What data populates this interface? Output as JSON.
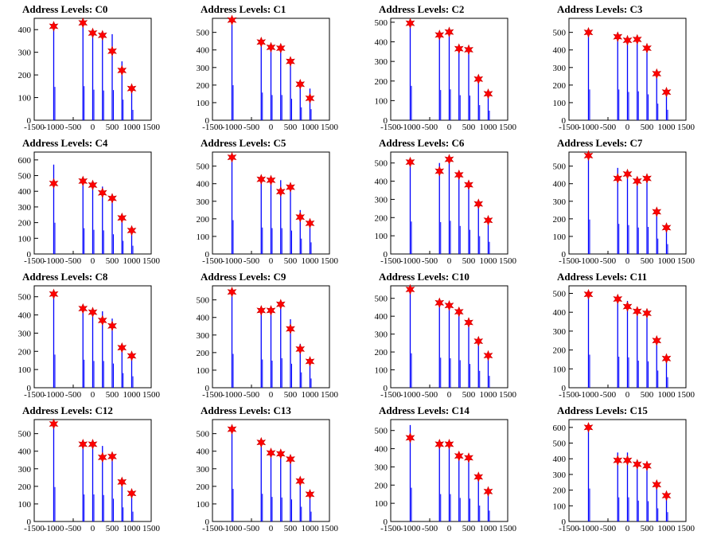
{
  "chart_data": [
    {
      "title": "Address Levels: C0",
      "type": "bar",
      "xlim": [
        -1500,
        1500
      ],
      "ylim": [
        0,
        450
      ],
      "yticks": [
        0,
        100,
        200,
        300,
        400
      ],
      "xticks": [
        -1500,
        -1000,
        -500,
        0,
        500,
        1000,
        1500
      ],
      "x": [
        -1000,
        -500,
        -250,
        0,
        250,
        500,
        750,
        1000
      ],
      "values": [
        420,
        0,
        430,
        385,
        375,
        380,
        260,
        130
      ],
      "markers": [
        [
          -1000,
          415
        ],
        [
          -250,
          430
        ],
        [
          0,
          385
        ],
        [
          250,
          375
        ],
        [
          500,
          305
        ],
        [
          750,
          220
        ],
        [
          1000,
          140
        ]
      ]
    },
    {
      "title": "Address Levels: C1",
      "type": "bar",
      "xlim": [
        -1500,
        1500
      ],
      "ylim": [
        0,
        580
      ],
      "yticks": [
        0,
        100,
        200,
        300,
        400,
        500
      ],
      "xticks": [
        -1500,
        -1000,
        -500,
        0,
        500,
        1000,
        1500
      ],
      "x": [
        -1000,
        -250,
        0,
        250,
        500,
        750,
        1000
      ],
      "values": [
        570,
        450,
        410,
        410,
        350,
        210,
        180
      ],
      "markers": [
        [
          -1000,
          570
        ],
        [
          -250,
          445
        ],
        [
          0,
          415
        ],
        [
          250,
          410
        ],
        [
          500,
          335
        ],
        [
          750,
          205
        ],
        [
          1000,
          125
        ]
      ]
    },
    {
      "title": "Address Levels: C2",
      "type": "bar",
      "xlim": [
        -1500,
        1500
      ],
      "ylim": [
        0,
        520
      ],
      "yticks": [
        0,
        100,
        200,
        300,
        400,
        500
      ],
      "xticks": [
        -1500,
        -1000,
        -500,
        0,
        500,
        1000,
        1500
      ],
      "x": [
        -1000,
        -250,
        0,
        250,
        500,
        750,
        1000
      ],
      "values": [
        500,
        440,
        450,
        365,
        360,
        220,
        140
      ],
      "markers": [
        [
          -1000,
          495
        ],
        [
          -250,
          435
        ],
        [
          0,
          450
        ],
        [
          250,
          365
        ],
        [
          500,
          360
        ],
        [
          750,
          210
        ],
        [
          1000,
          135
        ]
      ]
    },
    {
      "title": "Address Levels: C3",
      "type": "bar",
      "xlim": [
        -1500,
        1500
      ],
      "ylim": [
        0,
        580
      ],
      "yticks": [
        0,
        100,
        200,
        300,
        400,
        500
      ],
      "xticks": [
        -1500,
        -1000,
        -500,
        0,
        500,
        1000,
        1500
      ],
      "x": [
        -1000,
        -250,
        0,
        250,
        500,
        750,
        1000
      ],
      "values": [
        500,
        500,
        460,
        470,
        420,
        270,
        170
      ],
      "markers": [
        [
          -1000,
          500
        ],
        [
          -250,
          475
        ],
        [
          0,
          455
        ],
        [
          250,
          460
        ],
        [
          500,
          410
        ],
        [
          750,
          265
        ],
        [
          1000,
          160
        ]
      ]
    },
    {
      "title": "Address Levels: C4",
      "type": "bar",
      "xlim": [
        -1500,
        1500
      ],
      "ylim": [
        0,
        650
      ],
      "yticks": [
        0,
        100,
        200,
        300,
        400,
        500,
        600
      ],
      "xticks": [
        -1500,
        -1000,
        -500,
        0,
        500,
        1000,
        1500
      ],
      "x": [
        -1000,
        -250,
        0,
        250,
        500,
        750,
        1000
      ],
      "values": [
        570,
        470,
        440,
        430,
        360,
        240,
        150
      ],
      "markers": [
        [
          -1000,
          450
        ],
        [
          -250,
          465
        ],
        [
          0,
          440
        ],
        [
          250,
          390
        ],
        [
          500,
          355
        ],
        [
          750,
          230
        ],
        [
          1000,
          150
        ]
      ]
    },
    {
      "title": "Address Levels: C5",
      "type": "bar",
      "xlim": [
        -1500,
        1500
      ],
      "ylim": [
        0,
        580
      ],
      "yticks": [
        0,
        100,
        200,
        300,
        400,
        500
      ],
      "xticks": [
        -1500,
        -1000,
        -500,
        0,
        500,
        1000,
        1500
      ],
      "x": [
        -1000,
        -250,
        0,
        250,
        500,
        750,
        1000
      ],
      "values": [
        550,
        430,
        420,
        420,
        380,
        250,
        190
      ],
      "markers": [
        [
          -1000,
          550
        ],
        [
          -250,
          425
        ],
        [
          0,
          420
        ],
        [
          250,
          355
        ],
        [
          500,
          380
        ],
        [
          750,
          210
        ],
        [
          1000,
          175
        ]
      ]
    },
    {
      "title": "Address Levels: C6",
      "type": "bar",
      "xlim": [
        -1500,
        1500
      ],
      "ylim": [
        0,
        560
      ],
      "yticks": [
        0,
        100,
        200,
        300,
        400,
        500
      ],
      "xticks": [
        -1500,
        -1000,
        -500,
        0,
        500,
        1000,
        1500
      ],
      "x": [
        -1000,
        -250,
        0,
        250,
        500,
        750,
        1000
      ],
      "values": [
        510,
        500,
        520,
        440,
        380,
        280,
        190
      ],
      "markers": [
        [
          -1000,
          505
        ],
        [
          -250,
          455
        ],
        [
          0,
          520
        ],
        [
          250,
          435
        ],
        [
          500,
          380
        ],
        [
          750,
          275
        ],
        [
          1000,
          185
        ]
      ]
    },
    {
      "title": "Address Levels: C7",
      "type": "bar",
      "xlim": [
        -1500,
        1500
      ],
      "ylim": [
        0,
        580
      ],
      "yticks": [
        0,
        100,
        200,
        300,
        400,
        500
      ],
      "xticks": [
        -1500,
        -1000,
        -500,
        0,
        500,
        1000,
        1500
      ],
      "x": [
        -1000,
        -250,
        0,
        250,
        500,
        750,
        1000
      ],
      "values": [
        560,
        490,
        470,
        430,
        440,
        250,
        160
      ],
      "markers": [
        [
          -1000,
          560
        ],
        [
          -250,
          430
        ],
        [
          0,
          455
        ],
        [
          250,
          415
        ],
        [
          500,
          430
        ],
        [
          750,
          240
        ],
        [
          1000,
          150
        ]
      ]
    },
    {
      "title": "Address Levels: C8",
      "type": "bar",
      "xlim": [
        -1500,
        1500
      ],
      "ylim": [
        0,
        560
      ],
      "yticks": [
        0,
        100,
        200,
        300,
        400,
        500
      ],
      "xticks": [
        -1500,
        -1000,
        -500,
        0,
        500,
        1000,
        1500
      ],
      "x": [
        -1000,
        -250,
        0,
        250,
        500,
        750,
        1000
      ],
      "values": [
        520,
        440,
        420,
        420,
        380,
        230,
        180
      ],
      "markers": [
        [
          -1000,
          515
        ],
        [
          -250,
          435
        ],
        [
          0,
          415
        ],
        [
          250,
          370
        ],
        [
          500,
          340
        ],
        [
          750,
          220
        ],
        [
          1000,
          175
        ]
      ]
    },
    {
      "title": "Address Levels: C9",
      "type": "bar",
      "xlim": [
        -1500,
        1500
      ],
      "ylim": [
        0,
        580
      ],
      "yticks": [
        0,
        100,
        200,
        300,
        400,
        500
      ],
      "xticks": [
        -1500,
        -1000,
        -500,
        0,
        500,
        1000,
        1500
      ],
      "x": [
        -1000,
        -250,
        0,
        250,
        500,
        750,
        1000
      ],
      "values": [
        550,
        460,
        440,
        480,
        390,
        250,
        150
      ],
      "markers": [
        [
          -1000,
          545
        ],
        [
          -250,
          440
        ],
        [
          0,
          440
        ],
        [
          250,
          475
        ],
        [
          500,
          335
        ],
        [
          750,
          220
        ],
        [
          1000,
          150
        ]
      ]
    },
    {
      "title": "Address Levels: C10",
      "type": "bar",
      "xlim": [
        -1500,
        1500
      ],
      "ylim": [
        0,
        570
      ],
      "yticks": [
        0,
        100,
        200,
        300,
        400,
        500
      ],
      "xticks": [
        -1500,
        -1000,
        -500,
        0,
        500,
        1000,
        1500
      ],
      "x": [
        -1000,
        -250,
        0,
        250,
        500,
        750,
        1000
      ],
      "values": [
        550,
        480,
        470,
        440,
        380,
        270,
        190
      ],
      "markers": [
        [
          -1000,
          550
        ],
        [
          -250,
          475
        ],
        [
          0,
          460
        ],
        [
          250,
          425
        ],
        [
          500,
          365
        ],
        [
          750,
          260
        ],
        [
          1000,
          180
        ]
      ]
    },
    {
      "title": "Address Levels: C11",
      "type": "bar",
      "xlim": [
        -1500,
        1500
      ],
      "ylim": [
        0,
        540
      ],
      "yticks": [
        0,
        100,
        200,
        300,
        400,
        500
      ],
      "xticks": [
        -1500,
        -1000,
        -500,
        0,
        500,
        1000,
        1500
      ],
      "x": [
        -1000,
        -250,
        0,
        250,
        500,
        750,
        1000
      ],
      "values": [
        500,
        470,
        460,
        410,
        400,
        260,
        160
      ],
      "markers": [
        [
          -1000,
          495
        ],
        [
          -250,
          470
        ],
        [
          0,
          430
        ],
        [
          250,
          405
        ],
        [
          500,
          395
        ],
        [
          750,
          250
        ],
        [
          1000,
          155
        ]
      ]
    },
    {
      "title": "Address Levels: C12",
      "type": "bar",
      "xlim": [
        -1500,
        1500
      ],
      "ylim": [
        0,
        580
      ],
      "yticks": [
        0,
        100,
        200,
        300,
        400,
        500
      ],
      "xticks": [
        -1500,
        -1000,
        -500,
        0,
        500,
        1000,
        1500
      ],
      "x": [
        -1000,
        -250,
        0,
        250,
        500,
        750,
        1000
      ],
      "values": [
        560,
        440,
        440,
        430,
        370,
        230,
        160
      ],
      "markers": [
        [
          -1000,
          555
        ],
        [
          -250,
          440
        ],
        [
          0,
          440
        ],
        [
          250,
          365
        ],
        [
          500,
          370
        ],
        [
          750,
          225
        ],
        [
          1000,
          160
        ]
      ]
    },
    {
      "title": "Address Levels: C13",
      "type": "bar",
      "xlim": [
        -1500,
        1500
      ],
      "ylim": [
        0,
        580
      ],
      "yticks": [
        0,
        100,
        200,
        300,
        400,
        500
      ],
      "xticks": [
        -1500,
        -1000,
        -500,
        0,
        500,
        1000,
        1500
      ],
      "x": [
        -1000,
        -250,
        0,
        250,
        500,
        750,
        1000
      ],
      "values": [
        530,
        450,
        400,
        390,
        360,
        240,
        160
      ],
      "markers": [
        [
          -1000,
          525
        ],
        [
          -250,
          450
        ],
        [
          0,
          390
        ],
        [
          250,
          385
        ],
        [
          500,
          355
        ],
        [
          750,
          230
        ],
        [
          1000,
          155
        ]
      ]
    },
    {
      "title": "Address Levels: C14",
      "type": "bar",
      "xlim": [
        -1500,
        1500
      ],
      "ylim": [
        0,
        560
      ],
      "yticks": [
        0,
        100,
        200,
        300,
        400,
        500
      ],
      "xticks": [
        -1500,
        -1000,
        -500,
        0,
        500,
        1000,
        1500
      ],
      "x": [
        -1000,
        -250,
        0,
        250,
        500,
        750,
        1000
      ],
      "values": [
        530,
        430,
        430,
        370,
        360,
        250,
        170
      ],
      "markers": [
        [
          -1000,
          460
        ],
        [
          -250,
          425
        ],
        [
          0,
          425
        ],
        [
          250,
          360
        ],
        [
          500,
          350
        ],
        [
          750,
          245
        ],
        [
          1000,
          165
        ]
      ]
    },
    {
      "title": "Address Levels: C15",
      "type": "bar",
      "xlim": [
        -1500,
        1500
      ],
      "ylim": [
        0,
        650
      ],
      "yticks": [
        0,
        100,
        200,
        300,
        400,
        500,
        600
      ],
      "xticks": [
        -1500,
        -1000,
        -500,
        0,
        500,
        1000,
        1500
      ],
      "x": [
        -1000,
        -250,
        0,
        250,
        500,
        750,
        1000
      ],
      "values": [
        600,
        440,
        440,
        380,
        370,
        240,
        170
      ],
      "markers": [
        [
          -1000,
          600
        ],
        [
          -250,
          390
        ],
        [
          0,
          390
        ],
        [
          250,
          365
        ],
        [
          500,
          355
        ],
        [
          750,
          235
        ],
        [
          1000,
          165
        ]
      ]
    }
  ],
  "colors": {
    "bar": "#0000ff",
    "marker_fill": "#ff0000",
    "marker_stroke": "#cc0000",
    "axis": "#000000"
  }
}
